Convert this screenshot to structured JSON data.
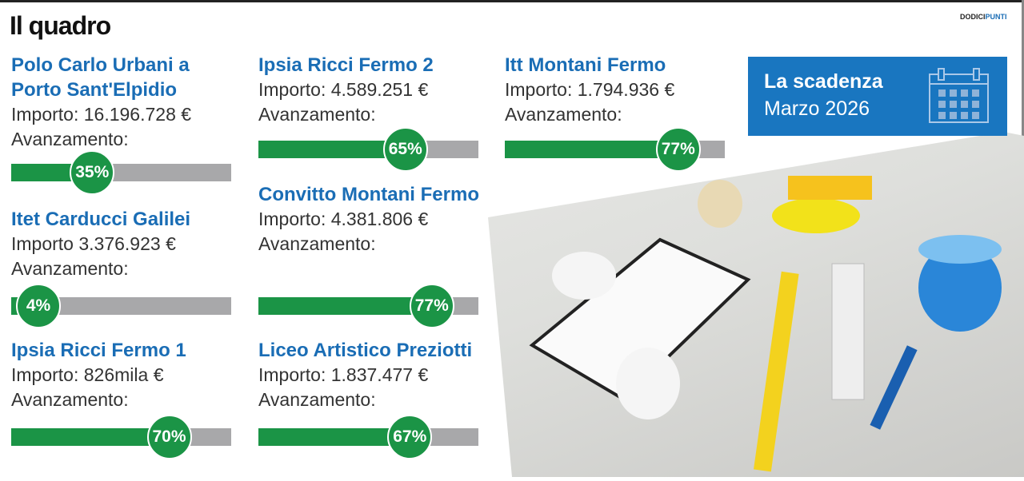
{
  "header": {
    "title": "Il quadro",
    "brand_a": "DODICI",
    "brand_b": "PUNTI"
  },
  "labels": {
    "progress": "Avanzamento:"
  },
  "projects": [
    {
      "name": "Polo Carlo Urbani a Porto Sant'Elpidio",
      "amount": "Importo: 16.196.728 €",
      "progress": 35,
      "progress_label": "35%"
    },
    {
      "name": "Itet Carducci Galilei",
      "amount": "Importo 3.376.923 €",
      "progress": 4,
      "progress_label": "4%"
    },
    {
      "name": "Ipsia Ricci Fermo 1",
      "amount": "Importo: 826mila €",
      "progress": 70,
      "progress_label": "70%"
    },
    {
      "name": "Ipsia Ricci Fermo 2",
      "amount": "Importo: 4.589.251 €",
      "progress": 65,
      "progress_label": "65%"
    },
    {
      "name": "Convitto Montani Fermo",
      "amount": "Importo: 4.381.806 €",
      "progress": 77,
      "progress_label": "77%"
    },
    {
      "name": "Liceo Artistico Preziotti",
      "amount": "Importo: 1.837.477 €",
      "progress": 67,
      "progress_label": "67%"
    },
    {
      "name": "Itt Montani Fermo",
      "amount": "Importo: 1.794.936 €",
      "progress": 77,
      "progress_label": "77%"
    }
  ],
  "deadline": {
    "title": "La scadenza",
    "date": "Marzo 2026",
    "icon": "calendar-icon"
  },
  "colors": {
    "blue": "#1a6db5",
    "green": "#1b9446",
    "gray": "#a8a8aa"
  }
}
